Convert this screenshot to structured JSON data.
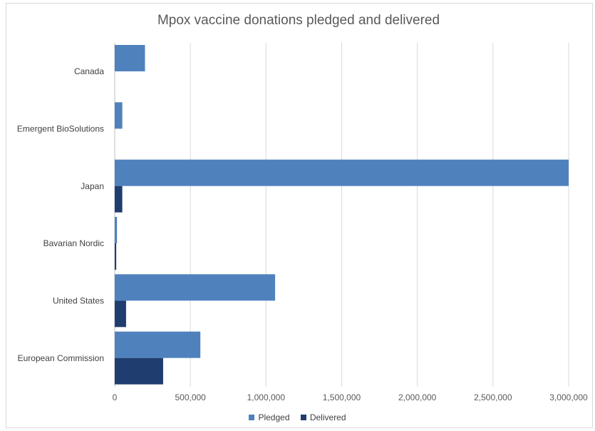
{
  "chart_data": {
    "type": "bar",
    "orientation": "horizontal",
    "title": "Mpox vaccine donations pledged and delivered",
    "categories": [
      "Canada",
      "Emergent BioSolutions",
      "Japan",
      "Bavarian Nordic",
      "United States",
      "European Commission"
    ],
    "series": [
      {
        "name": "Pledged",
        "color": "#4f81bd",
        "values": [
          200000,
          50000,
          3000000,
          15000,
          1060000,
          566000
        ]
      },
      {
        "name": "Delivered",
        "color": "#1f3d6e",
        "values": [
          0,
          0,
          50000,
          10000,
          75000,
          320000
        ]
      }
    ],
    "xlim": [
      0,
      3000000
    ],
    "xticks": [
      0,
      500000,
      1000000,
      1500000,
      2000000,
      2500000,
      3000000
    ],
    "xtick_labels": [
      "0",
      "500,000",
      "1,000,000",
      "1,500,000",
      "2,000,000",
      "2,500,000",
      "3,000,000"
    ],
    "grid": true,
    "legend_position": "bottom"
  }
}
